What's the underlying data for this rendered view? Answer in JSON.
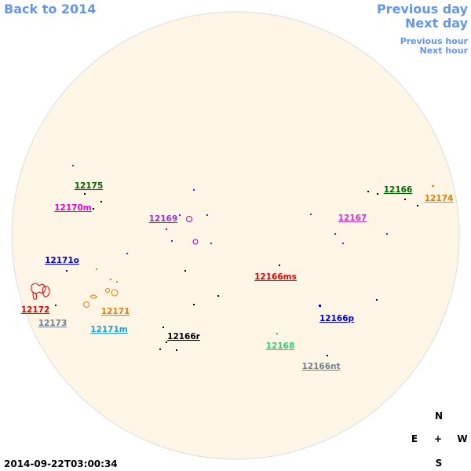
{
  "nav": {
    "back": "Back to 2014",
    "previous_day": "Previous day",
    "next_day": "Next day",
    "previous_hour": "Previous hour",
    "next_hour": "Next hour"
  },
  "regions": [
    "12175",
    "12170m",
    "12169",
    "12171o",
    "12166ms",
    "12172",
    "12171",
    "12173",
    "12171m",
    "12166r",
    "12168",
    "12166p",
    "12166nt",
    "12167",
    "12166",
    "12174"
  ],
  "compass": {
    "north": "N",
    "east": "E",
    "center": "+",
    "west": "W",
    "south": "S"
  },
  "timestamp": "2014-09-22T03:00:34"
}
